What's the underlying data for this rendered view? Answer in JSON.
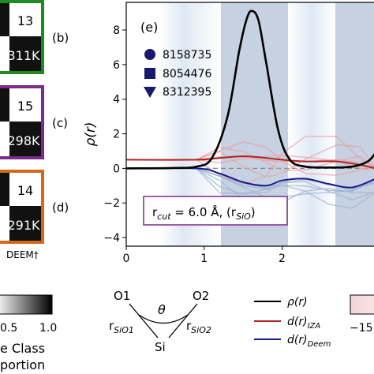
{
  "tiles": [
    {
      "tag": "(b)",
      "top_value": "13",
      "bottom_value": "311K",
      "border": "#1f8a1f"
    },
    {
      "tag": "(c)",
      "top_value": "15",
      "bottom_value": "298K",
      "border": "#7b2a8a"
    },
    {
      "tag": "(d)",
      "top_value": "14",
      "bottom_value": "291K",
      "border": "#d2691e"
    }
  ],
  "deem_label": "DEEM†",
  "colorbar_left": {
    "ticks": [
      "0.5",
      "1.0"
    ],
    "label_lines": [
      "e Class",
      "portion"
    ]
  },
  "colorbar_right": {
    "ticks": [
      "−15"
    ]
  },
  "diagram": {
    "o1": "O1",
    "o2": "O2",
    "si": "Si",
    "theta": "θ",
    "r1": "r",
    "r1_sub": "SiO1",
    "r2": "r",
    "r2_sub": "SiO2"
  },
  "bottom_legend": [
    {
      "label": "ρ(r)",
      "color": "#000000"
    },
    {
      "label": "d(r)",
      "sub": "IZA",
      "color": "#b22222"
    },
    {
      "label": "d(r)",
      "sub": "Deem",
      "color": "#1a1a8c"
    }
  ],
  "colors": {
    "black_curve": "#000000",
    "iza": "#b22222",
    "deem": "#1a1a8c",
    "pink_bg": "#e8a0a8",
    "blue_bg": "#9fb4cf",
    "cutoff_box": "#7b2a8a"
  },
  "chart_data": {
    "type": "line",
    "panel_label": "(e)",
    "ylabel": "ρ(r)",
    "xlabel": "",
    "xlim": [
      0,
      3.2
    ],
    "ylim": [
      -4.5,
      9.6
    ],
    "xticks": [
      "0",
      "1",
      "2"
    ],
    "yticks": [
      "−4",
      "−2",
      "0",
      "2",
      "4",
      "6",
      "8"
    ],
    "legend": [
      {
        "label": "8158735",
        "marker": "circle"
      },
      {
        "label": "8054476",
        "marker": "square"
      },
      {
        "label": "8312395",
        "marker": "triangle-down"
      }
    ],
    "annotation": {
      "text": "r",
      "sub": "cut",
      "tail": " = 6.0 Å, (r",
      "sub2": "SiO",
      "end": ")"
    },
    "series": [
      {
        "name": "ρ(r)",
        "x": [
          0.0,
          0.6,
          0.9,
          1.1,
          1.3,
          1.45,
          1.55,
          1.62,
          1.7,
          1.8,
          1.95,
          2.1,
          2.3,
          2.6,
          2.9,
          3.1,
          3.2
        ],
        "y": [
          0.0,
          0.02,
          0.1,
          0.6,
          3.0,
          6.8,
          8.7,
          9.1,
          8.5,
          6.0,
          2.2,
          0.5,
          0.1,
          0.05,
          0.1,
          0.4,
          0.9
        ]
      },
      {
        "name": "d(r) IZA",
        "x": [
          0.0,
          0.9,
          1.2,
          1.5,
          1.8,
          2.0,
          2.3,
          2.7,
          3.0,
          3.2
        ],
        "y": [
          0.5,
          0.5,
          0.6,
          0.7,
          0.6,
          0.5,
          0.4,
          0.4,
          0.2,
          0.0
        ]
      },
      {
        "name": "d(r) Deem",
        "x": [
          0.0,
          0.9,
          1.2,
          1.5,
          1.8,
          2.0,
          2.3,
          2.6,
          2.9,
          3.2
        ],
        "y": [
          0.0,
          0.0,
          -0.3,
          -0.8,
          -1.0,
          -0.7,
          -0.6,
          -0.9,
          -1.1,
          -0.6
        ]
      }
    ]
  }
}
